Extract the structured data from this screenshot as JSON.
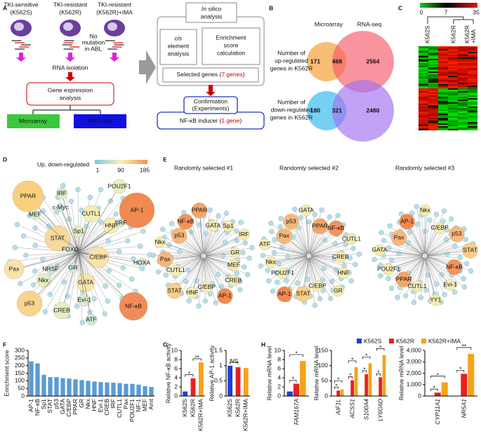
{
  "panels": {
    "letters": [
      "A",
      "B",
      "C",
      "D",
      "E",
      "F",
      "G",
      "H"
    ],
    "A": {
      "samples": [
        {
          "name": "TKI-sensitive",
          "label": "(K562S)"
        },
        {
          "name": "TKI-resistant",
          "label": "(K562R)"
        },
        {
          "name": "TKI-resistant",
          "label": "(K562R)+IMA"
        }
      ],
      "no_mutation": [
        "No",
        "mutation",
        "in ABL"
      ],
      "rna_isolation": "RNA isolation",
      "gene_expression": [
        "Gene expression",
        "analysis"
      ],
      "platforms": [
        "Microarray",
        "RNA-seq"
      ]
    },
    "workflow": {
      "in_silico": [
        "In silico",
        "analysis"
      ],
      "cis": [
        "cis",
        "element",
        "analysis"
      ],
      "enrichment": [
        "Enrichment",
        "score",
        "calculation"
      ],
      "selected": [
        "Selected genes (",
        "7 genes",
        ")"
      ],
      "confirmation": [
        "Confirmation",
        "(Experiments)"
      ],
      "inducer": [
        "NF-κB inducer (",
        "1 gene",
        ")"
      ]
    },
    "B": {
      "sets": [
        "Microarray",
        "RNA-seq"
      ],
      "up": {
        "label": [
          "Number of",
          "up-regulated",
          "genes in K562R"
        ],
        "counts": [
          171,
          468,
          2564
        ]
      },
      "down": {
        "label": [
          "Number of",
          "down-regulated",
          "genes in K562R"
        ],
        "counts": [
          180,
          321,
          2480
        ]
      }
    },
    "C": {
      "scale": [
        0,
        7,
        35
      ],
      "columns": [
        [
          "K562S"
        ],
        [
          "K562R"
        ],
        [
          "K562R",
          "+IMA"
        ]
      ]
    },
    "D": {
      "title": "Up, down-regulated",
      "scale": [
        1,
        90,
        185
      ],
      "nodes": [
        "PPAR",
        "AP-1",
        "STAT",
        "C/EBP",
        "CUTL1",
        "POU2F1",
        "HNF",
        "IRF",
        "c-Myc",
        "MEF",
        "Sp1",
        "Nkx",
        "GATA",
        "Pax",
        "p53",
        "NF-κB",
        "CREB",
        "Evi-1",
        "ATF",
        "NRSF",
        "GR",
        "HOXA",
        "SRF",
        "FOXO"
      ]
    },
    "E": {
      "networks": [
        {
          "title": "Randomly selected #1",
          "nodes": [
            "MEF",
            "CREB",
            "AP-1",
            "C/EBP",
            "HNF",
            "STAT",
            "CUTL1",
            "Pax",
            "Nkx",
            "p53",
            "NF-κB",
            "PPAR",
            "GATA",
            "Sp1",
            "IRF",
            "GR"
          ]
        },
        {
          "title": "Randomly selected #2",
          "nodes": [
            "C/EBP",
            "STAT",
            "AP-1",
            "POU2F1",
            "Nkx",
            "ATF",
            "Pax",
            "p53",
            "GATA",
            "PPAR",
            "NF-κB",
            "CUTL1",
            "CREB",
            "HNF",
            "GR"
          ]
        },
        {
          "title": "Randomly selected #3",
          "nodes": [
            "PPAR",
            "POU2F1",
            "GATA",
            "Pax",
            "AP-1",
            "Nkx",
            "C/EBP",
            "p53",
            "STAT",
            "NF-κB",
            "Evi-1",
            "YY1",
            "CUTL1"
          ]
        }
      ]
    }
  },
  "chart_data": [
    {
      "type": "bar",
      "y_label": "Enrichment score",
      "ylim": [
        0,
        300
      ],
      "yticks": [
        0,
        50,
        100,
        150,
        200,
        250,
        300
      ],
      "categories": [
        "AP-1",
        "NF-κB",
        "Sp1",
        "STAT",
        "p53",
        "GATA",
        "C/EBP",
        "PPAR",
        "GR",
        "Nkx",
        "HNF",
        "Evi-1",
        "CREB",
        "IRF",
        "CUTL1",
        "Pax",
        "POU2F1",
        "NF-1",
        "MEF",
        "Arnt"
      ],
      "values": [
        228,
        215,
        140,
        125,
        125,
        118,
        115,
        110,
        105,
        100,
        95,
        92,
        90,
        88,
        85,
        80,
        80,
        75,
        65,
        60
      ],
      "color": "#5b9bd5"
    },
    {
      "type": "bar",
      "y_label": "Relative NF-κB activity",
      "ylim": [
        0,
        10
      ],
      "yticks": [
        0,
        2,
        4,
        6,
        8,
        10
      ],
      "categories": [
        "K562S",
        "K562R",
        "K562R+IMA"
      ],
      "values": [
        1,
        3.9,
        7.4
      ],
      "colors": [
        "#1f3fd6",
        "#e8201f",
        "#f7a21b"
      ],
      "annotations": [
        "*",
        "**"
      ]
    },
    {
      "type": "bar",
      "y_label": "Relative AP-1 activity",
      "ylim": [
        0,
        1.5
      ],
      "yticks": [
        0,
        0.5,
        1,
        1.5
      ],
      "categories": [
        "K562S",
        "K562R",
        "K562R+IMA"
      ],
      "values": [
        1,
        0.95,
        0.92
      ],
      "colors": [
        "#1f3fd6",
        "#e8201f",
        "#f7a21b"
      ],
      "annotations": [
        "NS"
      ]
    },
    {
      "type": "bar",
      "y_label": "Relative mRNA level",
      "ylim": [
        0,
        10
      ],
      "yticks": [
        0,
        2,
        4,
        6,
        8,
        10
      ],
      "categories": [
        "FAM167A"
      ],
      "series": [
        {
          "name": "K562S",
          "color": "#1f3fd6",
          "values": [
            1
          ]
        },
        {
          "name": "K562R",
          "color": "#e8201f",
          "values": [
            2.7
          ]
        },
        {
          "name": "K562R+IMA",
          "color": "#f7a21b",
          "values": [
            7.7
          ]
        }
      ],
      "annotations": [
        [
          "*",
          "*"
        ]
      ]
    },
    {
      "type": "bar",
      "y_label": "Relative mRNA level",
      "ylim": [
        0,
        150
      ],
      "yticks": [
        0,
        50,
        100,
        150
      ],
      "categories": [
        "AIF1L",
        "ACSS1",
        "S100A4",
        "LY6G6D"
      ],
      "series": [
        {
          "color": "#1f3fd6",
          "values": [
            1,
            1,
            1,
            1
          ]
        },
        {
          "color": "#e8201f",
          "values": [
            18,
            52,
            72,
            62
          ]
        },
        {
          "color": "#f7a21b",
          "values": [
            22,
            95,
            108,
            135
          ]
        }
      ],
      "annotations": [
        [
          "*",
          "*"
        ],
        [
          "*",
          "*"
        ],
        [
          "*",
          "*"
        ],
        [
          "*",
          "*"
        ]
      ]
    },
    {
      "type": "bar",
      "y_label": "Relative mRNA level",
      "ylim": [
        0,
        4000
      ],
      "yticks": [
        0,
        {
          "value": 1000,
          "label": "1,000"
        },
        {
          "value": 2000,
          "label": "2,000"
        },
        {
          "value": 3000,
          "label": "3,000"
        },
        {
          "value": 4000,
          "label": "4,000"
        }
      ],
      "categories": [
        "CYP11A1",
        "NR5A1"
      ],
      "series": [
        {
          "color": "#1f3fd6",
          "values": [
            1,
            1
          ]
        },
        {
          "color": "#e8201f",
          "values": [
            300,
            1950
          ]
        },
        {
          "color": "#f7a21b",
          "values": [
            1200,
            3700
          ]
        }
      ],
      "annotations": [
        [
          "*",
          "*"
        ],
        [
          "*",
          "**"
        ]
      ]
    }
  ]
}
